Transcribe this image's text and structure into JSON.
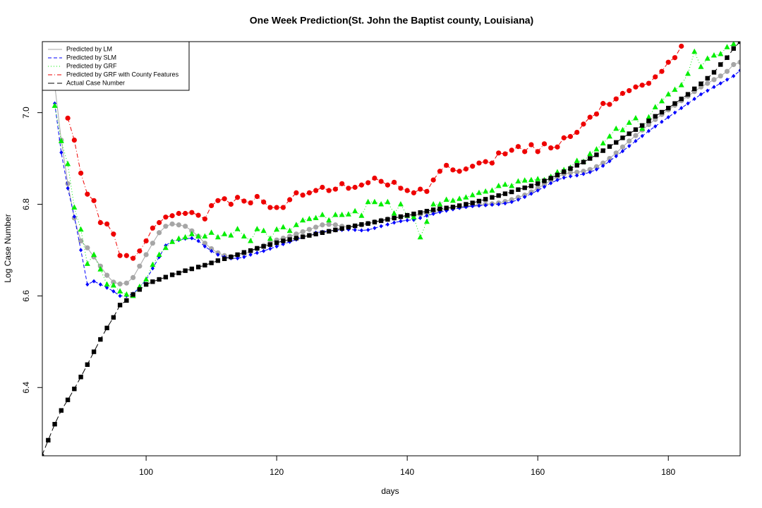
{
  "chart_data": {
    "type": "line",
    "title": "One Week Prediction(St. John the Baptist county, Louisiana)",
    "x_label": "days",
    "y_label": "Log Case Number",
    "xlim": [
      84.1,
      191
    ],
    "ylim": [
      6.251,
      7.155
    ],
    "xticks": [
      100,
      120,
      140,
      160,
      180
    ],
    "yticks": [
      6.4,
      6.6,
      6.8,
      {
        "value": 7,
        "label": "7.0"
      }
    ],
    "legend": "top-left",
    "x": [
      84,
      85,
      86,
      87,
      88,
      89,
      90,
      91,
      92,
      93,
      94,
      95,
      96,
      97,
      98,
      99,
      100,
      101,
      102,
      103,
      104,
      105,
      106,
      107,
      108,
      109,
      110,
      111,
      112,
      113,
      114,
      115,
      116,
      117,
      118,
      119,
      120,
      121,
      122,
      123,
      124,
      125,
      126,
      127,
      128,
      129,
      130,
      131,
      132,
      133,
      134,
      135,
      136,
      137,
      138,
      139,
      140,
      141,
      142,
      143,
      144,
      145,
      146,
      147,
      148,
      149,
      150,
      151,
      152,
      153,
      154,
      155,
      156,
      157,
      158,
      159,
      160,
      161,
      162,
      163,
      164,
      165,
      166,
      167,
      168,
      169,
      170,
      171,
      172,
      173,
      174,
      175,
      176,
      177,
      178,
      179,
      180,
      181,
      182,
      183,
      184,
      185,
      186,
      187,
      188,
      189,
      190,
      191
    ],
    "series": [
      {
        "name": "Predicted by LM",
        "color": "#a6a6a6",
        "marker": "circle",
        "dash": "solid",
        "values": [
          null,
          null,
          7.06,
          6.94,
          6.845,
          6.77,
          6.72,
          6.705,
          6.685,
          6.665,
          6.645,
          6.63,
          6.626,
          6.628,
          6.64,
          6.665,
          6.69,
          6.715,
          6.738,
          6.752,
          6.757,
          6.755,
          6.752,
          6.742,
          6.73,
          6.715,
          6.703,
          6.694,
          6.688,
          6.686,
          6.688,
          6.692,
          6.697,
          6.703,
          6.71,
          6.716,
          6.722,
          6.726,
          6.73,
          6.735,
          6.74,
          6.745,
          6.75,
          6.755,
          6.756,
          6.755,
          6.752,
          6.75,
          6.752,
          6.755,
          6.758,
          6.762,
          6.765,
          6.768,
          6.77,
          6.772,
          6.774,
          6.776,
          6.778,
          6.781,
          6.784,
          6.787,
          6.79,
          6.792,
          6.794,
          6.796,
          6.798,
          6.799,
          6.8,
          6.801,
          6.803,
          6.806,
          6.81,
          6.815,
          6.82,
          6.827,
          6.835,
          6.843,
          6.852,
          6.86,
          6.866,
          6.869,
          6.87,
          6.872,
          6.876,
          6.882,
          6.89,
          6.9,
          6.912,
          6.925,
          6.938,
          6.95,
          6.962,
          6.974,
          6.985,
          6.996,
          7.006,
          7.016,
          7.026,
          7.036,
          7.046,
          7.056,
          7.064,
          7.072,
          7.08,
          7.09,
          7.105,
          7.11
        ]
      },
      {
        "name": "Predicted by SLM",
        "color": "#0000ff",
        "marker": "diamond",
        "dash": "dashed",
        "values": [
          null,
          null,
          7.02,
          6.913,
          6.835,
          6.773,
          6.7,
          6.625,
          6.632,
          6.625,
          6.618,
          6.61,
          6.6,
          6.6,
          6.605,
          6.618,
          6.635,
          6.66,
          6.685,
          6.71,
          6.72,
          6.722,
          6.725,
          6.726,
          6.72,
          6.708,
          6.698,
          6.69,
          6.685,
          6.682,
          6.682,
          6.685,
          6.69,
          6.694,
          6.698,
          6.703,
          6.708,
          6.713,
          6.718,
          6.723,
          6.728,
          6.733,
          6.738,
          6.74,
          6.742,
          6.743,
          6.744,
          6.745,
          6.744,
          6.743,
          6.744,
          6.748,
          6.752,
          6.756,
          6.76,
          6.763,
          6.765,
          6.766,
          6.77,
          6.775,
          6.779,
          6.783,
          6.786,
          6.789,
          6.792,
          6.794,
          6.796,
          6.797,
          6.798,
          6.799,
          6.8,
          6.802,
          6.805,
          6.81,
          6.816,
          6.823,
          6.83,
          6.838,
          6.846,
          6.853,
          6.858,
          6.861,
          6.863,
          6.866,
          6.87,
          6.876,
          6.884,
          6.894,
          6.905,
          6.916,
          6.927,
          6.938,
          6.949,
          6.96,
          6.97,
          6.98,
          6.99,
          7.0,
          7.01,
          7.02,
          7.03,
          7.04,
          7.048,
          7.056,
          7.064,
          7.072,
          7.08,
          7.092
        ]
      },
      {
        "name": "Predicted by GRF",
        "color": "#00ee00",
        "marker": "triangle",
        "dash": "dotted",
        "values": [
          null,
          null,
          7.015,
          6.938,
          6.888,
          6.793,
          6.745,
          6.67,
          6.69,
          6.658,
          6.625,
          6.623,
          6.61,
          6.603,
          6.6,
          6.62,
          6.636,
          6.668,
          6.69,
          6.705,
          6.718,
          6.725,
          6.728,
          6.735,
          6.73,
          6.73,
          6.738,
          6.728,
          6.735,
          6.732,
          6.746,
          6.73,
          6.72,
          6.746,
          6.742,
          6.725,
          6.745,
          6.75,
          6.742,
          6.755,
          6.765,
          6.768,
          6.77,
          6.777,
          6.765,
          6.777,
          6.777,
          6.778,
          6.785,
          6.775,
          6.805,
          6.805,
          6.8,
          6.805,
          6.78,
          6.8,
          6.775,
          6.772,
          6.728,
          6.762,
          6.8,
          6.8,
          6.81,
          6.808,
          6.812,
          6.815,
          6.82,
          6.825,
          6.828,
          6.83,
          6.84,
          6.843,
          6.84,
          6.85,
          6.852,
          6.853,
          6.855,
          6.853,
          6.86,
          6.87,
          6.875,
          6.88,
          6.895,
          6.893,
          6.91,
          6.92,
          6.933,
          6.948,
          6.965,
          6.962,
          6.978,
          6.988,
          6.965,
          6.99,
          7.012,
          7.025,
          7.04,
          7.05,
          7.06,
          7.085,
          7.133,
          7.1,
          7.118,
          7.125,
          7.128,
          7.143,
          7.15,
          null
        ]
      },
      {
        "name": "Predicted by GRF with County Features",
        "color": "#ee0000",
        "marker": "circle",
        "dash": "dashdot",
        "values": [
          null,
          null,
          null,
          null,
          6.988,
          6.94,
          6.868,
          6.822,
          6.808,
          6.76,
          6.757,
          6.735,
          6.688,
          6.688,
          6.682,
          6.698,
          6.72,
          6.748,
          6.76,
          6.772,
          6.775,
          6.78,
          6.78,
          6.782,
          6.776,
          6.768,
          6.797,
          6.808,
          6.812,
          6.8,
          6.815,
          6.807,
          6.803,
          6.817,
          6.805,
          6.793,
          6.793,
          6.793,
          6.81,
          6.825,
          6.82,
          6.825,
          6.83,
          6.837,
          6.83,
          6.833,
          6.845,
          6.835,
          6.837,
          6.842,
          6.847,
          6.857,
          6.85,
          6.842,
          6.848,
          6.835,
          6.83,
          6.825,
          6.833,
          6.828,
          6.853,
          6.872,
          6.885,
          6.875,
          6.872,
          6.877,
          6.883,
          6.89,
          6.893,
          6.89,
          6.912,
          6.91,
          6.918,
          6.926,
          6.915,
          6.93,
          6.915,
          6.932,
          6.923,
          6.925,
          6.945,
          6.948,
          6.957,
          6.975,
          6.99,
          6.997,
          7.02,
          7.018,
          7.03,
          7.042,
          7.048,
          7.056,
          7.06,
          7.064,
          7.078,
          7.09,
          7.11,
          7.12,
          7.145,
          null,
          null,
          null,
          null,
          null,
          null,
          null,
          null,
          null
        ]
      },
      {
        "name": "Actual Case Number",
        "color": "#000000",
        "marker": "square",
        "dash": "longdash",
        "values": [
          6.25,
          6.285,
          6.32,
          6.35,
          6.373,
          6.397,
          6.423,
          6.45,
          6.478,
          6.505,
          6.53,
          6.553,
          6.58,
          6.59,
          6.603,
          6.614,
          6.625,
          6.631,
          6.636,
          6.641,
          6.646,
          6.65,
          6.655,
          6.659,
          6.663,
          6.667,
          6.672,
          6.677,
          6.681,
          6.685,
          6.69,
          6.695,
          6.699,
          6.704,
          6.708,
          6.712,
          6.716,
          6.72,
          6.723,
          6.726,
          6.729,
          6.732,
          6.735,
          6.738,
          6.741,
          6.744,
          6.747,
          6.75,
          6.753,
          6.756,
          6.758,
          6.761,
          6.764,
          6.767,
          6.77,
          6.773,
          6.776,
          6.779,
          6.782,
          6.785,
          6.788,
          6.79,
          6.792,
          6.794,
          6.797,
          6.8,
          6.803,
          6.807,
          6.811,
          6.815,
          6.819,
          6.823,
          6.827,
          6.832,
          6.836,
          6.84,
          6.845,
          6.851,
          6.857,
          6.864,
          6.871,
          6.878,
          6.885,
          6.892,
          6.9,
          6.908,
          6.917,
          6.926,
          6.935,
          6.945,
          6.954,
          6.963,
          6.972,
          6.982,
          6.992,
          7.001,
          7.01,
          7.02,
          7.03,
          7.04,
          7.052,
          7.063,
          7.075,
          7.088,
          7.105,
          7.12,
          7.14,
          7.155
        ]
      }
    ]
  }
}
